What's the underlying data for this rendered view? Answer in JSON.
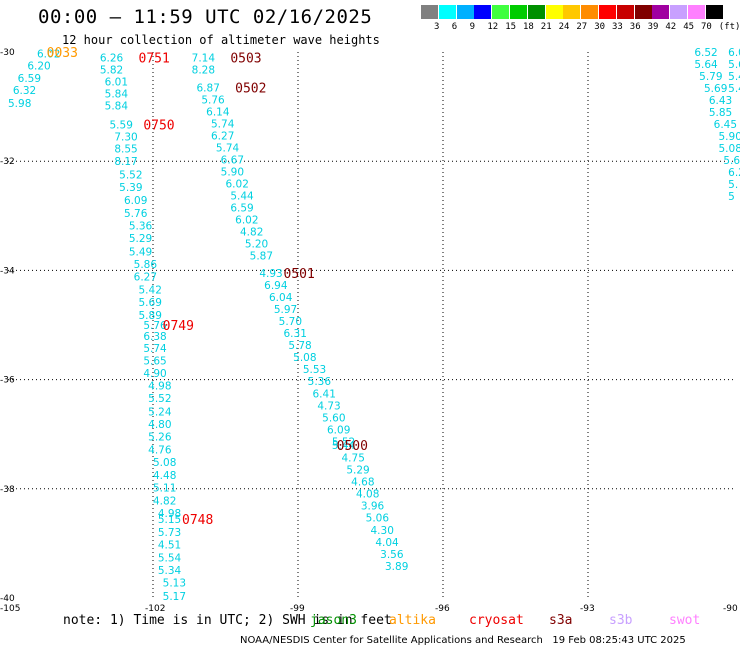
{
  "header": {
    "title": "00:00 – 11:59 UTC 02/16/2025",
    "subtitle": "12 hour collection of altimeter wave heights"
  },
  "legend": {
    "labels": [
      "3",
      "6",
      "9",
      "12",
      "15",
      "18",
      "21",
      "24",
      "27",
      "30",
      "33",
      "36",
      "39",
      "42",
      "45",
      "70",
      "(ft)"
    ],
    "colors": [
      "#808080",
      "#00ffff",
      "#00b0ff",
      "#0000ff",
      "#40ff40",
      "#00cc00",
      "#009000",
      "#ffff00",
      "#ffc800",
      "#ff8c00",
      "#ff0000",
      "#c80000",
      "#800000",
      "#a000a0",
      "#c8a0ff",
      "#ff80ff",
      "#000000"
    ]
  },
  "chart_data": {
    "type": "scatter",
    "xlim": [
      -105,
      -90
    ],
    "ylim": [
      -40,
      -30
    ],
    "x_ticks": [
      -105,
      -102,
      -99,
      -96,
      -93,
      -90
    ],
    "y_ticks": [
      -30,
      -32,
      -34,
      -36,
      -38,
      -40
    ],
    "value_color": "#00d0e0",
    "tracks": [
      {
        "id": "west-edge",
        "points": [
          {
            "lon": -104.4,
            "lat": -30.03,
            "swh": "6.02"
          },
          {
            "lon": -104.6,
            "lat": -30.25,
            "swh": "6.20"
          },
          {
            "lon": -104.8,
            "lat": -30.48,
            "swh": "6.59"
          },
          {
            "lon": -104.9,
            "lat": -30.7,
            "swh": "6.32"
          },
          {
            "lon": -105.0,
            "lat": -30.93,
            "swh": "5.98"
          }
        ]
      },
      {
        "id": "track-0751",
        "points": [
          {
            "lon": -103.1,
            "lat": -30.1,
            "swh": "6.26"
          },
          {
            "lon": -103.1,
            "lat": -30.32,
            "swh": "5.82"
          },
          {
            "lon": -103.0,
            "lat": -30.54,
            "swh": "6.01"
          },
          {
            "lon": -103.0,
            "lat": -30.76,
            "swh": "5.84"
          },
          {
            "lon": -103.0,
            "lat": -30.98,
            "swh": "5.84"
          },
          {
            "lon": -102.9,
            "lat": -31.33,
            "swh": "5.59"
          },
          {
            "lon": -102.8,
            "lat": -31.55,
            "swh": "7.30"
          },
          {
            "lon": -102.8,
            "lat": -31.77,
            "swh": "8.55"
          },
          {
            "lon": -102.8,
            "lat": -32.0,
            "swh": "8.17"
          },
          {
            "lon": -102.7,
            "lat": -32.24,
            "swh": "5.52"
          },
          {
            "lon": -102.7,
            "lat": -32.47,
            "swh": "5.39"
          },
          {
            "lon": -102.6,
            "lat": -32.71,
            "swh": "6.09"
          },
          {
            "lon": -102.6,
            "lat": -32.95,
            "swh": "5.76"
          },
          {
            "lon": -102.5,
            "lat": -33.18,
            "swh": "5.36"
          },
          {
            "lon": -102.5,
            "lat": -33.41,
            "swh": "5.29"
          },
          {
            "lon": -102.5,
            "lat": -33.65,
            "swh": "5.49"
          },
          {
            "lon": -102.4,
            "lat": -33.88,
            "swh": "5.86"
          },
          {
            "lon": -102.4,
            "lat": -34.11,
            "swh": "6.27"
          },
          {
            "lon": -102.3,
            "lat": -34.35,
            "swh": "5.42"
          },
          {
            "lon": -102.3,
            "lat": -34.58,
            "swh": "5.69"
          },
          {
            "lon": -102.3,
            "lat": -34.82,
            "swh": "5.89"
          },
          {
            "lon": -102.2,
            "lat": -35.0,
            "swh": "5.76"
          },
          {
            "lon": -102.2,
            "lat": -35.2,
            "swh": "6.38"
          },
          {
            "lon": -102.2,
            "lat": -35.42,
            "swh": "5.74"
          },
          {
            "lon": -102.2,
            "lat": -35.65,
            "swh": "5.65"
          },
          {
            "lon": -102.2,
            "lat": -35.88,
            "swh": "4.90"
          },
          {
            "lon": -102.1,
            "lat": -36.11,
            "swh": "4.98"
          },
          {
            "lon": -102.1,
            "lat": -36.34,
            "swh": "5.52"
          },
          {
            "lon": -102.1,
            "lat": -36.58,
            "swh": "5.24"
          },
          {
            "lon": -102.1,
            "lat": -36.81,
            "swh": "4.80"
          },
          {
            "lon": -102.1,
            "lat": -37.04,
            "swh": "5.26"
          },
          {
            "lon": -102.1,
            "lat": -37.28,
            "swh": "4.76"
          },
          {
            "lon": -102.0,
            "lat": -37.51,
            "swh": "5.08"
          },
          {
            "lon": -102.0,
            "lat": -37.75,
            "swh": "4.48"
          },
          {
            "lon": -102.0,
            "lat": -37.98,
            "swh": "5.11"
          },
          {
            "lon": -102.0,
            "lat": -38.21,
            "swh": "4.82"
          },
          {
            "lon": -101.9,
            "lat": -38.44,
            "swh": "4.98"
          },
          {
            "lon": -101.9,
            "lat": -38.55,
            "swh": "5.15"
          },
          {
            "lon": -101.9,
            "lat": -38.79,
            "swh": "5.73"
          },
          {
            "lon": -101.9,
            "lat": -39.02,
            "swh": "4.51"
          },
          {
            "lon": -101.9,
            "lat": -39.26,
            "swh": "5.54"
          },
          {
            "lon": -101.9,
            "lat": -39.49,
            "swh": "5.34"
          },
          {
            "lon": -101.8,
            "lat": -39.72,
            "swh": "5.13"
          },
          {
            "lon": -101.8,
            "lat": -39.96,
            "swh": "5.17"
          }
        ]
      },
      {
        "id": "track-0503",
        "points": [
          {
            "lon": -101.2,
            "lat": -30.1,
            "swh": "7.14"
          },
          {
            "lon": -101.2,
            "lat": -30.32,
            "swh": "8.28"
          },
          {
            "lon": -101.1,
            "lat": -30.65,
            "swh": "6.87"
          },
          {
            "lon": -101.0,
            "lat": -30.87,
            "swh": "5.76"
          },
          {
            "lon": -100.9,
            "lat": -31.09,
            "swh": "6.14"
          },
          {
            "lon": -100.8,
            "lat": -31.31,
            "swh": "5.74"
          },
          {
            "lon": -100.8,
            "lat": -31.53,
            "swh": "6.27"
          },
          {
            "lon": -100.7,
            "lat": -31.75,
            "swh": "5.74"
          },
          {
            "lon": -100.6,
            "lat": -31.97,
            "swh": "6.67"
          },
          {
            "lon": -100.6,
            "lat": -32.19,
            "swh": "5.90"
          },
          {
            "lon": -100.5,
            "lat": -32.41,
            "swh": "6.02"
          },
          {
            "lon": -100.4,
            "lat": -32.63,
            "swh": "5.44"
          },
          {
            "lon": -100.4,
            "lat": -32.85,
            "swh": "6.59"
          },
          {
            "lon": -100.3,
            "lat": -33.07,
            "swh": "6.02"
          },
          {
            "lon": -100.2,
            "lat": -33.29,
            "swh": "4.82"
          },
          {
            "lon": -100.1,
            "lat": -33.51,
            "swh": "5.20"
          },
          {
            "lon": -100.0,
            "lat": -33.73,
            "swh": "5.87"
          },
          {
            "lon": -99.8,
            "lat": -34.05,
            "swh": "4.93"
          },
          {
            "lon": -99.7,
            "lat": -34.27,
            "swh": "6.94"
          },
          {
            "lon": -99.6,
            "lat": -34.49,
            "swh": "6.04"
          },
          {
            "lon": -99.5,
            "lat": -34.71,
            "swh": "5.97"
          },
          {
            "lon": -99.4,
            "lat": -34.93,
            "swh": "5.70"
          },
          {
            "lon": -99.3,
            "lat": -35.15,
            "swh": "6.31"
          },
          {
            "lon": -99.2,
            "lat": -35.37,
            "swh": "5.78"
          },
          {
            "lon": -99.1,
            "lat": -35.59,
            "swh": "5.08"
          },
          {
            "lon": -98.9,
            "lat": -35.81,
            "swh": "5.53"
          },
          {
            "lon": -98.8,
            "lat": -36.03,
            "swh": "5.36"
          },
          {
            "lon": -98.7,
            "lat": -36.25,
            "swh": "6.41"
          },
          {
            "lon": -98.6,
            "lat": -36.47,
            "swh": "4.73"
          },
          {
            "lon": -98.5,
            "lat": -36.69,
            "swh": "5.60"
          },
          {
            "lon": -98.4,
            "lat": -36.91,
            "swh": "6.09"
          },
          {
            "lon": -98.3,
            "lat": -37.13,
            "swh": "5.52"
          },
          {
            "lon": -98.3,
            "lat": -37.2,
            "swh": "5.44"
          },
          {
            "lon": -98.1,
            "lat": -37.43,
            "swh": "4.75"
          },
          {
            "lon": -98.0,
            "lat": -37.65,
            "swh": "5.29"
          },
          {
            "lon": -97.9,
            "lat": -37.87,
            "swh": "4.68"
          },
          {
            "lon": -97.8,
            "lat": -38.09,
            "swh": "4.08"
          },
          {
            "lon": -97.7,
            "lat": -38.31,
            "swh": "3.96"
          },
          {
            "lon": -97.6,
            "lat": -38.53,
            "swh": "5.06"
          },
          {
            "lon": -97.5,
            "lat": -38.75,
            "swh": "4.30"
          },
          {
            "lon": -97.4,
            "lat": -38.97,
            "swh": "4.04"
          },
          {
            "lon": -97.3,
            "lat": -39.19,
            "swh": "3.56"
          },
          {
            "lon": -97.2,
            "lat": -39.41,
            "swh": "3.89"
          }
        ]
      },
      {
        "id": "east-edge",
        "points": [
          {
            "lon": -90.8,
            "lat": -30.0,
            "swh": "6.52"
          },
          {
            "lon": -90.1,
            "lat": -30.0,
            "swh": "6.0"
          },
          {
            "lon": -90.8,
            "lat": -30.22,
            "swh": "5.64"
          },
          {
            "lon": -90.1,
            "lat": -30.22,
            "swh": "5.6"
          },
          {
            "lon": -90.7,
            "lat": -30.44,
            "swh": "5.79"
          },
          {
            "lon": -90.1,
            "lat": -30.44,
            "swh": "5.4"
          },
          {
            "lon": -90.6,
            "lat": -30.66,
            "swh": "5.69"
          },
          {
            "lon": -90.1,
            "lat": -30.66,
            "swh": "5.4"
          },
          {
            "lon": -90.5,
            "lat": -30.88,
            "swh": "6.43"
          },
          {
            "lon": -90.5,
            "lat": -31.1,
            "swh": "5.85"
          },
          {
            "lon": -90.4,
            "lat": -31.32,
            "swh": "6.45"
          },
          {
            "lon": -90.3,
            "lat": -31.54,
            "swh": "5.90"
          },
          {
            "lon": -90.3,
            "lat": -31.76,
            "swh": "5.08"
          },
          {
            "lon": -90.2,
            "lat": -31.98,
            "swh": "5.6"
          },
          {
            "lon": -90.1,
            "lat": -32.2,
            "swh": "6.2"
          },
          {
            "lon": -90.1,
            "lat": -32.42,
            "swh": "5."
          },
          {
            "lon": -90.1,
            "lat": -32.64,
            "swh": "5"
          }
        ]
      }
    ],
    "time_labels": [
      {
        "text": "0033",
        "lon": -104.2,
        "lat": -30.0,
        "color": "#ff9900"
      },
      {
        "text": "0751",
        "lon": -102.3,
        "lat": -30.1,
        "color": "#ee0000"
      },
      {
        "text": "0750",
        "lon": -102.2,
        "lat": -31.33,
        "color": "#ee0000"
      },
      {
        "text": "0749",
        "lon": -101.8,
        "lat": -35.0,
        "color": "#ee0000"
      },
      {
        "text": "0748",
        "lon": -101.4,
        "lat": -38.55,
        "color": "#ee0000"
      },
      {
        "text": "0503",
        "lon": -100.4,
        "lat": -30.1,
        "color": "#800000"
      },
      {
        "text": "0502",
        "lon": -100.3,
        "lat": -30.65,
        "color": "#800000"
      },
      {
        "text": "0501",
        "lon": -99.3,
        "lat": -34.05,
        "color": "#800000"
      },
      {
        "text": "0500",
        "lon": -98.2,
        "lat": -37.2,
        "color": "#800000"
      }
    ]
  },
  "footer": {
    "note": "note: 1) Time is in UTC; 2) SWH is in feet",
    "satellites": [
      {
        "name": "jason3",
        "color": "#009000"
      },
      {
        "name": "altika",
        "color": "#ff9900"
      },
      {
        "name": "cryosat",
        "color": "#ee0000"
      },
      {
        "name": "s3a",
        "color": "#800000"
      },
      {
        "name": "s3b",
        "color": "#c8a0ff"
      },
      {
        "name": "swot",
        "color": "#ff80ff"
      }
    ],
    "credit": "NOAA/NESDIS Center for Satellite Applications and Research   19 Feb 08:25:43 UTC 2025"
  }
}
